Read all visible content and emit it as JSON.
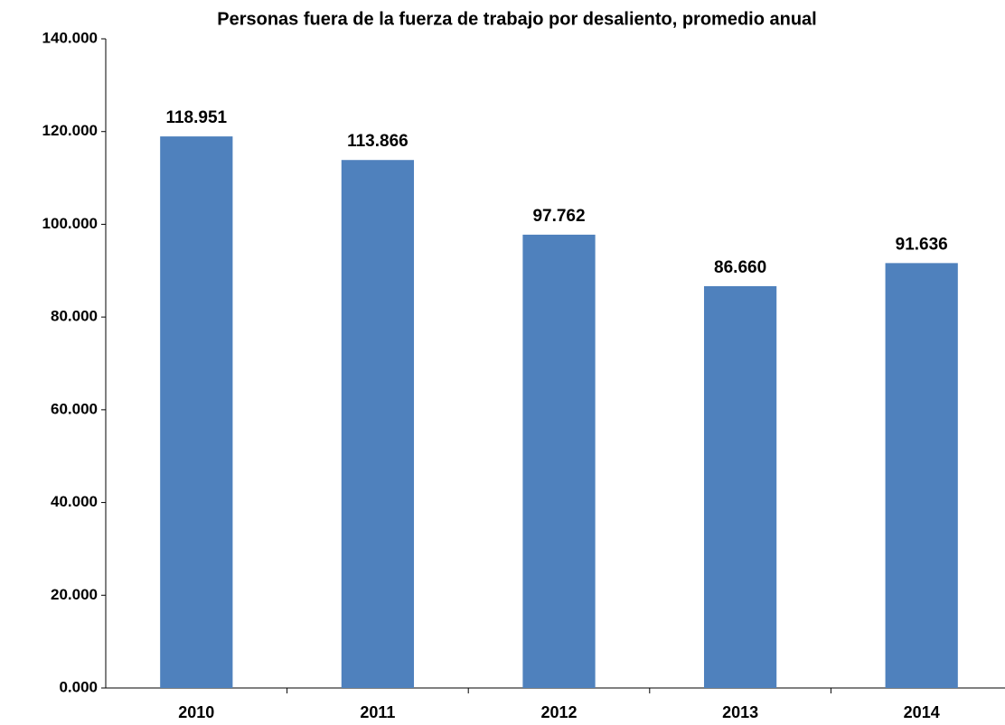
{
  "chart_data": {
    "type": "bar",
    "title": "Personas fuera de la fuerza de trabajo por desaliento, promedio anual",
    "categories": [
      "2010",
      "2011",
      "2012",
      "2013",
      "2014"
    ],
    "values": [
      118951,
      113866,
      97762,
      86660,
      91636
    ],
    "value_labels": [
      "118.951",
      "113.866",
      "97.762",
      "86.660",
      "91.636"
    ],
    "color": "#4f81bd",
    "ylim": [
      0,
      140000
    ],
    "yticks": [
      {
        "value": 0,
        "label": "0.000"
      },
      {
        "value": 20000,
        "label": "20.000"
      },
      {
        "value": 40000,
        "label": "40.000"
      },
      {
        "value": 60000,
        "label": "60.000"
      },
      {
        "value": 80000,
        "label": "80.000"
      },
      {
        "value": 100000,
        "label": "100.000"
      },
      {
        "value": 120000,
        "label": "120.000"
      },
      {
        "value": 140000,
        "label": "140.000"
      }
    ],
    "grid": false
  }
}
